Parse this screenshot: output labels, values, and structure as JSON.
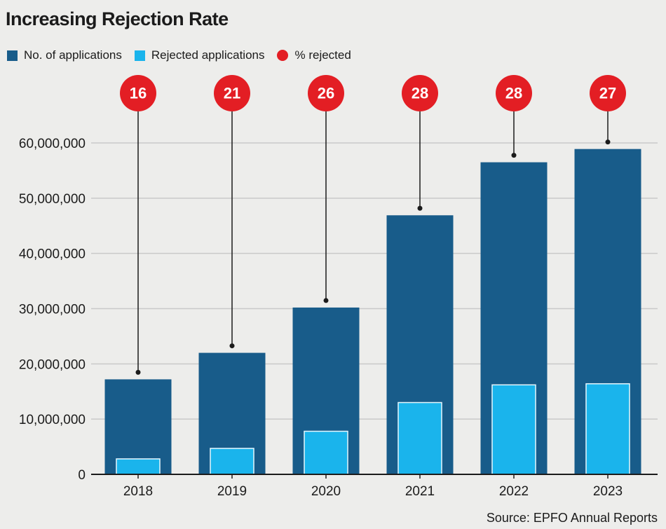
{
  "chart_data": {
    "type": "bar",
    "title": "Increasing Rejection Rate",
    "categories": [
      "2018",
      "2019",
      "2020",
      "2021",
      "2022",
      "2023"
    ],
    "series": [
      {
        "name": "No. of applications",
        "values": [
          17200000,
          22000000,
          30200000,
          46900000,
          56500000,
          58900000
        ]
      },
      {
        "name": "Rejected applications",
        "values": [
          2800000,
          4700000,
          7800000,
          13000000,
          16200000,
          16400000
        ]
      }
    ],
    "percent_series": {
      "name": "% rejected",
      "values": [
        16,
        21,
        26,
        28,
        28,
        27
      ]
    },
    "ylim": [
      0,
      60000000
    ],
    "yticks": [
      "0",
      "10,000,000",
      "20,000,000",
      "30,000,000",
      "40,000,000",
      "50,000,000",
      "60,000,000"
    ],
    "grid": true,
    "legend_position": "top-left",
    "colors": {
      "applications": "#185c8a",
      "rejected": "#1ab4ec",
      "percent": "#e31e24",
      "grid": "#c9c9c9"
    },
    "source": "Source: EPFO Annual Reports"
  }
}
